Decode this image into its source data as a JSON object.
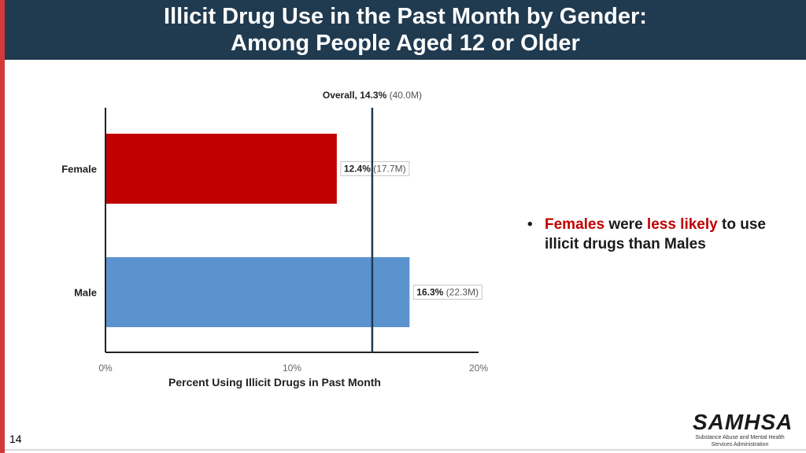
{
  "header": {
    "title_line1": "Illicit Drug Use in the Past Month by Gender:",
    "title_line2": "Among People Aged 12 or Older"
  },
  "chart_data": {
    "type": "bar",
    "orientation": "horizontal",
    "categories": [
      "Female",
      "Male"
    ],
    "values": [
      12.4,
      16.3
    ],
    "value_labels": [
      "12.4%",
      "16.3%"
    ],
    "count_labels": [
      "(17.7M)",
      "(22.3M)"
    ],
    "bar_colors": [
      "#c00000",
      "#5b93cf"
    ],
    "reference_line": {
      "value": 14.3,
      "label_bold": "Overall, 14.3%",
      "label_rest": "(40.0M)",
      "color": "#203a50"
    },
    "xlim": [
      0,
      20
    ],
    "xticks": [
      0,
      10,
      20
    ],
    "xtick_labels": [
      "0%",
      "10%",
      "20%"
    ],
    "xlabel": "Percent Using Illicit Drugs in Past Month",
    "ylabel": ""
  },
  "bullet": {
    "part1": "Females",
    "part2": " were ",
    "part3": "less likely",
    "part4": " to use illicit drugs than Males"
  },
  "footer": {
    "page_number": "14",
    "logo_text": "SAMHSA",
    "logo_sub1": "Substance Abuse and Mental Health",
    "logo_sub2": "Services Administration"
  },
  "colors": {
    "header_bg": "#203a50",
    "accent_red": "#c00000",
    "left_bar": "#d23a3a"
  }
}
